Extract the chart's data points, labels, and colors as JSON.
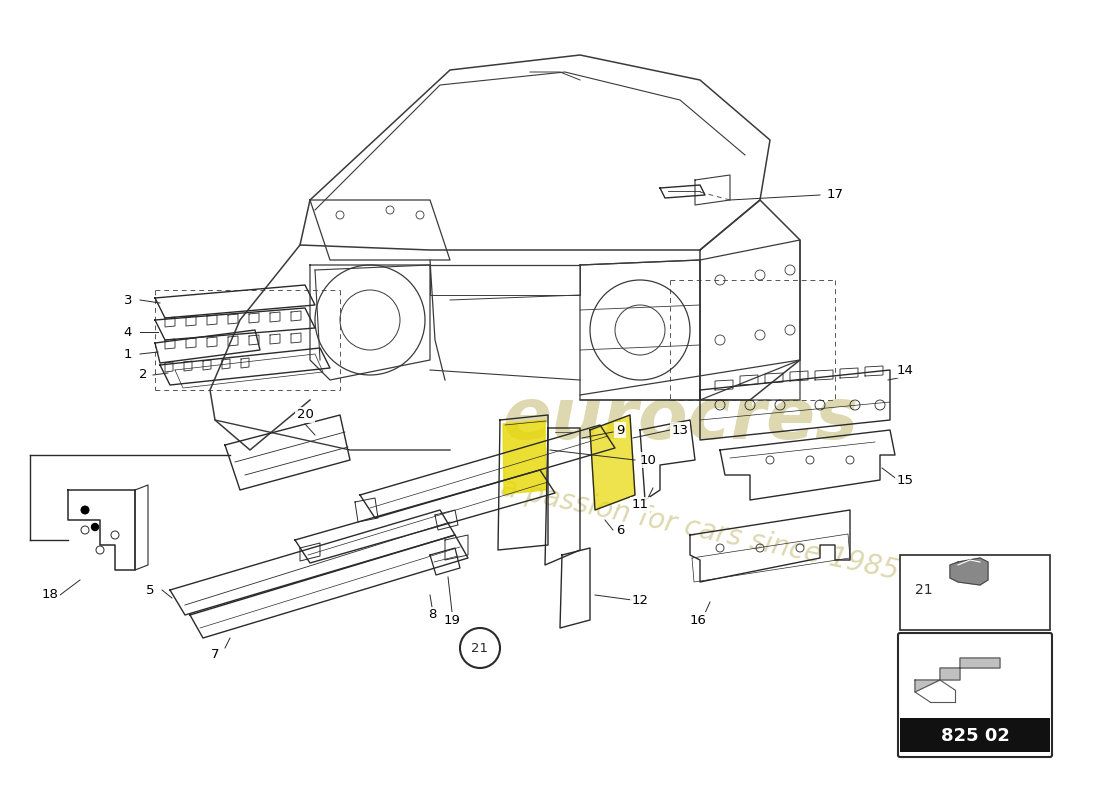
{
  "background_color": "#ffffff",
  "line_color": "#2a2a2a",
  "label_color": "#000000",
  "watermark1": "eurocres",
  "watermark2": "a passion for cars since 1985",
  "watermark_color": "#ddd8b0",
  "part_number_label": "825 02",
  "part_number_bg": "#111111",
  "legend_border": "#333333",
  "car_line_color": "#3a3a3a",
  "parts_line_color": "#2a2a2a",
  "yellow_fill": "#e8d800",
  "label_font_size": 9.5
}
